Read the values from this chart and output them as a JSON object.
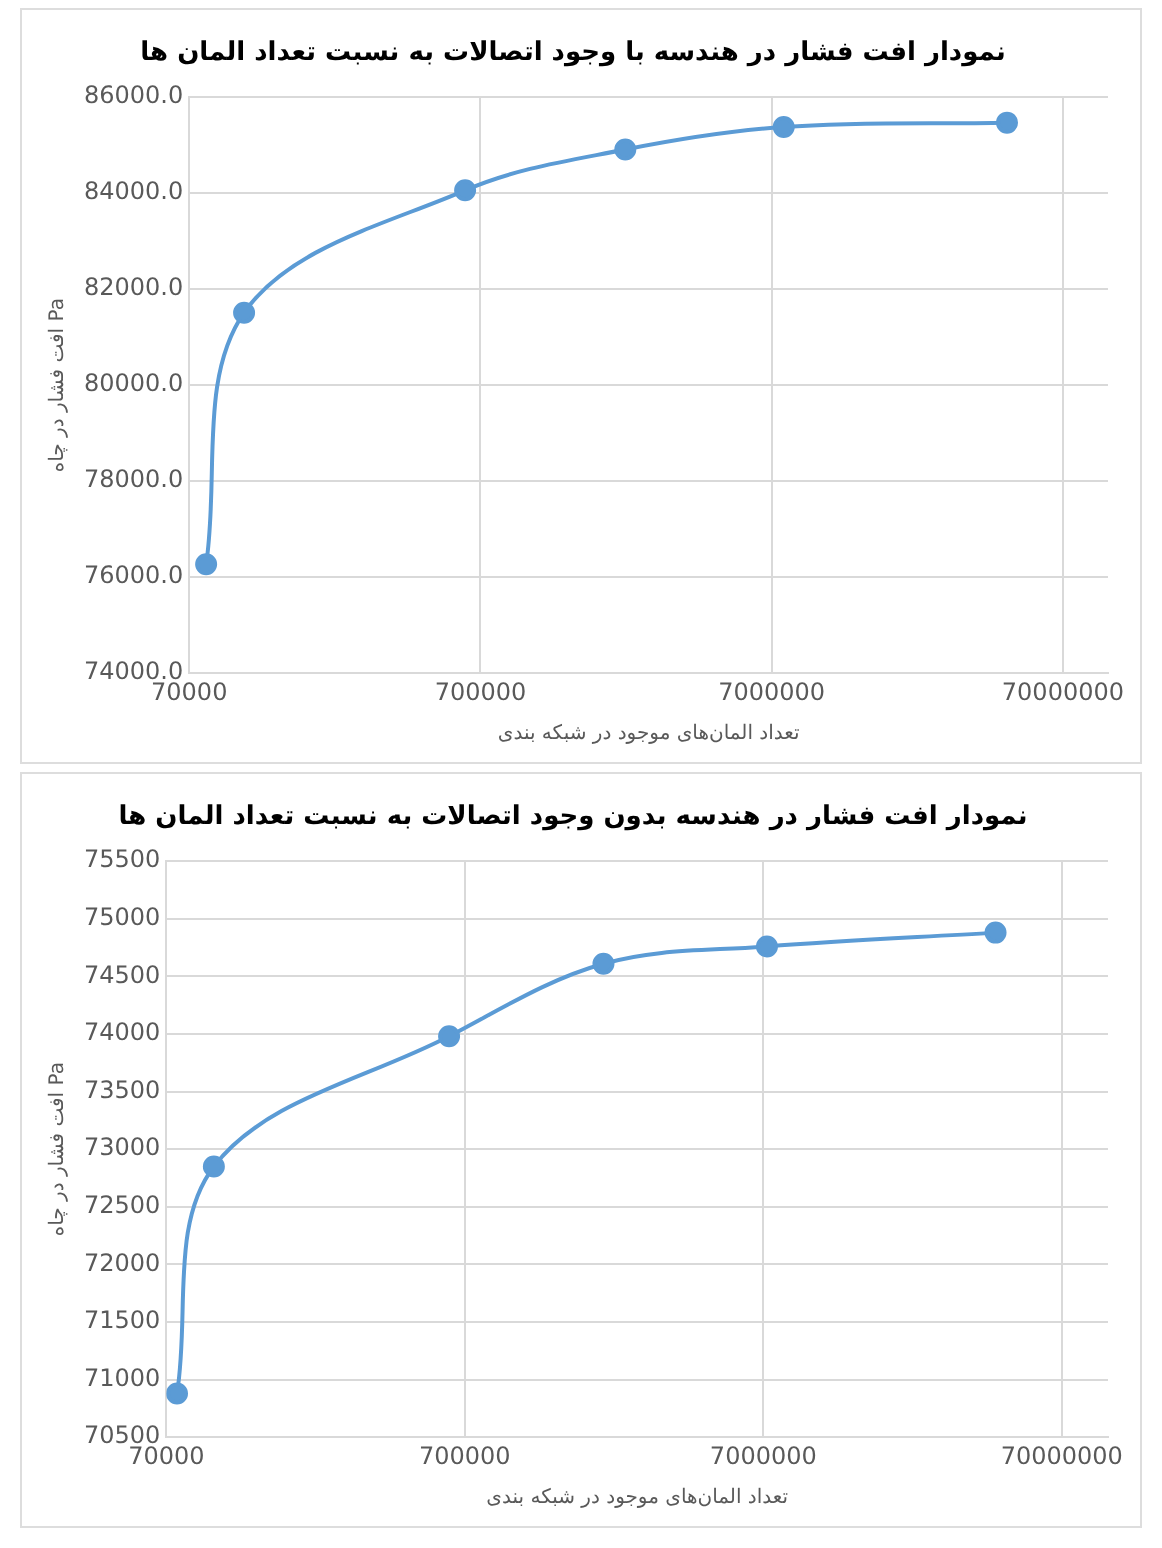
{
  "chart_data": [
    {
      "type": "line",
      "title": "نمودار افت فشار در هندسه با وجود اتصالات به نسبت تعداد المان ها",
      "xlabel": "تعداد المان‌های موجود در شبکه بندی",
      "ylabel": "افت فشار در چاه Pa",
      "log": "x",
      "grid": true,
      "marker": "circle",
      "xlim": [
        70000,
        100000000
      ],
      "xticks": [
        70000,
        700000,
        7000000,
        70000000
      ],
      "ylim": [
        74000,
        86000
      ],
      "yticks": [
        {
          "value": 74000,
          "label": "74000.0"
        },
        {
          "value": 76000,
          "label": "76000.0"
        },
        {
          "value": 78000,
          "label": "78000.0"
        },
        {
          "value": 80000,
          "label": "80000.0"
        },
        {
          "value": 82000,
          "label": "82000.0"
        },
        {
          "value": 84000,
          "label": "84000.0"
        },
        {
          "value": 86000,
          "label": "86000.0"
        }
      ],
      "x": [
        80000,
        108000,
        620000,
        2200000,
        7700000,
        45000000
      ],
      "series": [
        {
          "color": "#5b9bd5",
          "values": [
            76270,
            81510,
            84060,
            84910,
            85380,
            85470
          ]
        }
      ]
    },
    {
      "type": "line",
      "title": "نمودار افت فشار در هندسه بدون وجود اتصالات به نسبت تعداد المان ها",
      "xlabel": "تعداد المان‌های موجود در شبکه بندی",
      "ylabel": "افت فشار در چاه Pa",
      "log": "x",
      "grid": true,
      "marker": "circle",
      "xlim": [
        70000,
        100000000
      ],
      "xticks": [
        70000,
        700000,
        7000000,
        70000000
      ],
      "ylim": [
        70500,
        75500
      ],
      "yticks": [
        70500,
        71000,
        71500,
        72000,
        72500,
        73000,
        73500,
        74000,
        74500,
        75000,
        75500
      ],
      "x": [
        76000,
        101000,
        620000,
        2040000,
        7200000,
        42000000
      ],
      "series": [
        {
          "color": "#5b9bd5",
          "values": [
            70880,
            72850,
            73980,
            74610,
            74760,
            74880
          ]
        }
      ]
    }
  ]
}
